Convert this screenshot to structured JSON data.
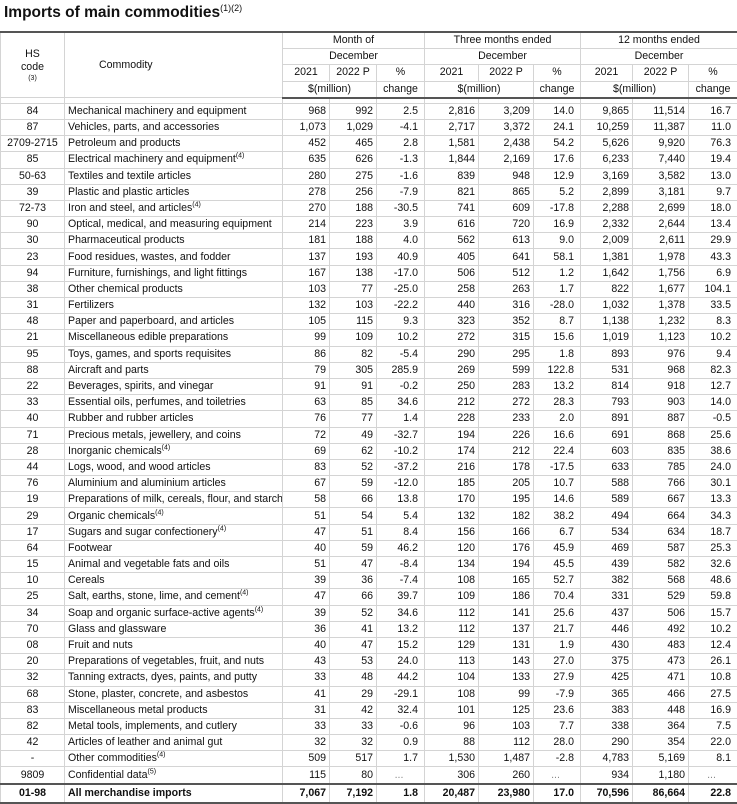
{
  "title": "Imports of main commodities",
  "title_note": "(1)(2)",
  "header": {
    "hs_code": "HS",
    "hs_code2": "code",
    "hs_note": "(3)",
    "commodity": "Commodity",
    "groups": [
      {
        "line1": "Month of",
        "line2": "December"
      },
      {
        "line1": "Three months ended",
        "line2": "December"
      },
      {
        "line1": "12 months ended",
        "line2": "December"
      }
    ],
    "year1": "2021",
    "year2": "2022 P",
    "pct": "%",
    "unit": "$(million)",
    "change": "change"
  },
  "rows": [
    {
      "hs": "84",
      "name": "Mechanical machinery and equipment",
      "note": "",
      "v": [
        "968",
        "992",
        "2.5",
        "2,816",
        "3,209",
        "14.0",
        "9,865",
        "11,514",
        "16.7"
      ]
    },
    {
      "hs": "87",
      "name": "Vehicles, parts, and accessories",
      "note": "",
      "v": [
        "1,073",
        "1,029",
        "-4.1",
        "2,717",
        "3,372",
        "24.1",
        "10,259",
        "11,387",
        "11.0"
      ]
    },
    {
      "hs": "2709-2715",
      "name": "Petroleum and products",
      "note": "",
      "v": [
        "452",
        "465",
        "2.8",
        "1,581",
        "2,438",
        "54.2",
        "5,626",
        "9,920",
        "76.3"
      ]
    },
    {
      "hs": "85",
      "name": "Electrical machinery and equipment",
      "note": "(4)",
      "v": [
        "635",
        "626",
        "-1.3",
        "1,844",
        "2,169",
        "17.6",
        "6,233",
        "7,440",
        "19.4"
      ]
    },
    {
      "hs": "50-63",
      "name": "Textiles and textile articles",
      "note": "",
      "v": [
        "280",
        "275",
        "-1.6",
        "839",
        "948",
        "12.9",
        "3,169",
        "3,582",
        "13.0"
      ]
    },
    {
      "hs": "39",
      "name": "Plastic and plastic articles",
      "note": "",
      "v": [
        "278",
        "256",
        "-7.9",
        "821",
        "865",
        "5.2",
        "2,899",
        "3,181",
        "9.7"
      ]
    },
    {
      "hs": "72-73",
      "name": "Iron and steel, and articles",
      "note": "(4)",
      "v": [
        "270",
        "188",
        "-30.5",
        "741",
        "609",
        "-17.8",
        "2,288",
        "2,699",
        "18.0"
      ]
    },
    {
      "hs": "90",
      "name": "Optical, medical, and measuring equipment",
      "note": "",
      "v": [
        "214",
        "223",
        "3.9",
        "616",
        "720",
        "16.9",
        "2,332",
        "2,644",
        "13.4"
      ]
    },
    {
      "hs": "30",
      "name": "Pharmaceutical products",
      "note": "",
      "v": [
        "181",
        "188",
        "4.0",
        "562",
        "613",
        "9.0",
        "2,009",
        "2,611",
        "29.9"
      ]
    },
    {
      "hs": "23",
      "name": "Food residues, wastes, and fodder",
      "note": "",
      "v": [
        "137",
        "193",
        "40.9",
        "405",
        "641",
        "58.1",
        "1,381",
        "1,978",
        "43.3"
      ]
    },
    {
      "hs": "94",
      "name": "Furniture, furnishings, and light fittings",
      "note": "",
      "v": [
        "167",
        "138",
        "-17.0",
        "506",
        "512",
        "1.2",
        "1,642",
        "1,756",
        "6.9"
      ]
    },
    {
      "hs": "38",
      "name": "Other chemical products",
      "note": "",
      "v": [
        "103",
        "77",
        "-25.0",
        "258",
        "263",
        "1.7",
        "822",
        "1,677",
        "104.1"
      ]
    },
    {
      "hs": "31",
      "name": "Fertilizers",
      "note": "",
      "v": [
        "132",
        "103",
        "-22.2",
        "440",
        "316",
        "-28.0",
        "1,032",
        "1,378",
        "33.5"
      ]
    },
    {
      "hs": "48",
      "name": "Paper and paperboard, and articles",
      "note": "",
      "v": [
        "105",
        "115",
        "9.3",
        "323",
        "352",
        "8.7",
        "1,138",
        "1,232",
        "8.3"
      ]
    },
    {
      "hs": "21",
      "name": "Miscellaneous edible preparations",
      "note": "",
      "v": [
        "99",
        "109",
        "10.2",
        "272",
        "315",
        "15.6",
        "1,019",
        "1,123",
        "10.2"
      ]
    },
    {
      "hs": "95",
      "name": "Toys, games, and sports requisites",
      "note": "",
      "v": [
        "86",
        "82",
        "-5.4",
        "290",
        "295",
        "1.8",
        "893",
        "976",
        "9.4"
      ]
    },
    {
      "hs": "88",
      "name": "Aircraft and parts",
      "note": "",
      "v": [
        "79",
        "305",
        "285.9",
        "269",
        "599",
        "122.8",
        "531",
        "968",
        "82.3"
      ]
    },
    {
      "hs": "22",
      "name": "Beverages, spirits, and vinegar",
      "note": "",
      "v": [
        "91",
        "91",
        "-0.2",
        "250",
        "283",
        "13.2",
        "814",
        "918",
        "12.7"
      ]
    },
    {
      "hs": "33",
      "name": "Essential oils, perfumes, and toiletries",
      "note": "",
      "v": [
        "63",
        "85",
        "34.6",
        "212",
        "272",
        "28.3",
        "793",
        "903",
        "14.0"
      ]
    },
    {
      "hs": "40",
      "name": "Rubber and rubber articles",
      "note": "",
      "v": [
        "76",
        "77",
        "1.4",
        "228",
        "233",
        "2.0",
        "891",
        "887",
        "-0.5"
      ]
    },
    {
      "hs": "71",
      "name": "Precious metals, jewellery, and coins",
      "note": "",
      "v": [
        "72",
        "49",
        "-32.7",
        "194",
        "226",
        "16.6",
        "691",
        "868",
        "25.6"
      ]
    },
    {
      "hs": "28",
      "name": "Inorganic chemicals",
      "note": "(4)",
      "v": [
        "69",
        "62",
        "-10.2",
        "174",
        "212",
        "22.4",
        "603",
        "835",
        "38.6"
      ]
    },
    {
      "hs": "44",
      "name": "Logs, wood, and wood articles",
      "note": "",
      "v": [
        "83",
        "52",
        "-37.2",
        "216",
        "178",
        "-17.5",
        "633",
        "785",
        "24.0"
      ]
    },
    {
      "hs": "76",
      "name": "Aluminium and aluminium articles",
      "note": "",
      "v": [
        "67",
        "59",
        "-12.0",
        "185",
        "205",
        "10.7",
        "588",
        "766",
        "30.1"
      ]
    },
    {
      "hs": "19",
      "name": "Preparations of milk, cereals, flour, and starch",
      "note": "",
      "v": [
        "58",
        "66",
        "13.8",
        "170",
        "195",
        "14.6",
        "589",
        "667",
        "13.3"
      ]
    },
    {
      "hs": "29",
      "name": "Organic chemicals",
      "note": "(4)",
      "v": [
        "51",
        "54",
        "5.4",
        "132",
        "182",
        "38.2",
        "494",
        "664",
        "34.3"
      ]
    },
    {
      "hs": "17",
      "name": "Sugars and sugar confectionery",
      "note": "(4)",
      "v": [
        "47",
        "51",
        "8.4",
        "156",
        "166",
        "6.7",
        "534",
        "634",
        "18.7"
      ]
    },
    {
      "hs": "64",
      "name": "Footwear",
      "note": "",
      "v": [
        "40",
        "59",
        "46.2",
        "120",
        "176",
        "45.9",
        "469",
        "587",
        "25.3"
      ]
    },
    {
      "hs": "15",
      "name": "Animal and vegetable fats and oils",
      "note": "",
      "v": [
        "51",
        "47",
        "-8.4",
        "134",
        "194",
        "45.5",
        "439",
        "582",
        "32.6"
      ]
    },
    {
      "hs": "10",
      "name": "Cereals",
      "note": "",
      "v": [
        "39",
        "36",
        "-7.4",
        "108",
        "165",
        "52.7",
        "382",
        "568",
        "48.6"
      ]
    },
    {
      "hs": "25",
      "name": "Salt, earths, stone, lime, and cement",
      "note": "(4)",
      "v": [
        "47",
        "66",
        "39.7",
        "109",
        "186",
        "70.4",
        "331",
        "529",
        "59.8"
      ]
    },
    {
      "hs": "34",
      "name": "Soap and organic surface-active agents",
      "note": "(4)",
      "v": [
        "39",
        "52",
        "34.6",
        "112",
        "141",
        "25.6",
        "437",
        "506",
        "15.7"
      ]
    },
    {
      "hs": "70",
      "name": "Glass and glassware",
      "note": "",
      "v": [
        "36",
        "41",
        "13.2",
        "112",
        "137",
        "21.7",
        "446",
        "492",
        "10.2"
      ]
    },
    {
      "hs": "08",
      "name": "Fruit and nuts",
      "note": "",
      "v": [
        "40",
        "47",
        "15.2",
        "129",
        "131",
        "1.9",
        "430",
        "483",
        "12.4"
      ]
    },
    {
      "hs": "20",
      "name": "Preparations of vegetables, fruit, and nuts",
      "note": "",
      "v": [
        "43",
        "53",
        "24.0",
        "113",
        "143",
        "27.0",
        "375",
        "473",
        "26.1"
      ]
    },
    {
      "hs": "32",
      "name": "Tanning extracts, dyes, paints, and putty",
      "note": "",
      "v": [
        "33",
        "48",
        "44.2",
        "104",
        "133",
        "27.9",
        "425",
        "471",
        "10.8"
      ]
    },
    {
      "hs": "68",
      "name": "Stone, plaster, concrete, and asbestos",
      "note": "",
      "v": [
        "41",
        "29",
        "-29.1",
        "108",
        "99",
        "-7.9",
        "365",
        "466",
        "27.5"
      ]
    },
    {
      "hs": "83",
      "name": "Miscellaneous metal products",
      "note": "",
      "v": [
        "31",
        "42",
        "32.4",
        "101",
        "125",
        "23.6",
        "383",
        "448",
        "16.9"
      ]
    },
    {
      "hs": "82",
      "name": "Metal tools, implements, and cutlery",
      "note": "",
      "v": [
        "33",
        "33",
        "-0.6",
        "96",
        "103",
        "7.7",
        "338",
        "364",
        "7.5"
      ]
    },
    {
      "hs": "42",
      "name": "Articles of leather and animal gut",
      "note": "",
      "v": [
        "32",
        "32",
        "0.9",
        "88",
        "112",
        "28.0",
        "290",
        "354",
        "22.0"
      ]
    },
    {
      "hs": "-",
      "name": "Other commodities",
      "note": "(4)",
      "v": [
        "509",
        "517",
        "1.7",
        "1,530",
        "1,487",
        "-2.8",
        "4,783",
        "5,169",
        "8.1"
      ]
    },
    {
      "hs": "9809",
      "name": "Confidential data",
      "note": "(5)",
      "v": [
        "115",
        "80",
        "...",
        "306",
        "260",
        "...",
        "934",
        "1,180",
        "..."
      ]
    }
  ],
  "total": {
    "hs": "01-98",
    "name": "All merchandise imports",
    "v": [
      "7,067",
      "7,192",
      "1.8",
      "20,487",
      "23,980",
      "17.0",
      "70,596",
      "86,664",
      "22.8"
    ]
  }
}
